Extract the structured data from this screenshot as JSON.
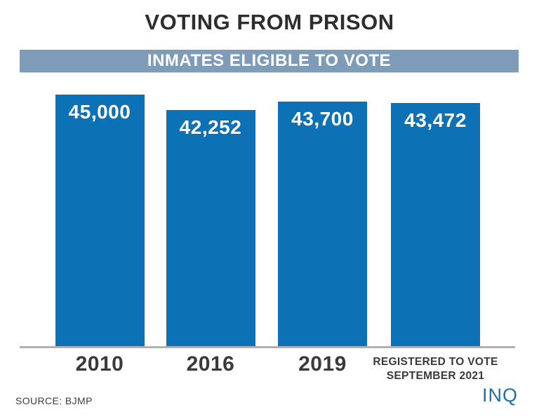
{
  "title": "VOTING FROM PRISON",
  "banner": {
    "label": "INMATES ELIGIBLE TO VOTE",
    "bg_color": "#7e9cb8"
  },
  "chart_data": {
    "type": "bar",
    "title": "VOTING FROM PRISON",
    "subtitle": "INMATES ELIGIBLE TO VOTE",
    "categories": [
      "2010",
      "2016",
      "2019",
      "REGISTERED TO VOTE SEPTEMBER 2021"
    ],
    "values": [
      45000,
      42252,
      43700,
      43472
    ],
    "value_labels": [
      "45,000",
      "42,252",
      "43,700",
      "43,472"
    ],
    "xlabel": "",
    "ylabel": "",
    "ylim": [
      0,
      45000
    ],
    "grid": false,
    "legend": false,
    "bar_color": "#0d72b5"
  },
  "footer": {
    "source": "SOURCE: BJMP",
    "logo": "INQ"
  },
  "colors": {
    "bar": "#0d72b5",
    "banner": "#7e9cb8",
    "title_text": "#2e2e2e",
    "label_text": "#3a3a3a",
    "axis_line": "#b1b1b4",
    "logo_blue": "#1f6fad",
    "value_text": "#ffffff"
  }
}
